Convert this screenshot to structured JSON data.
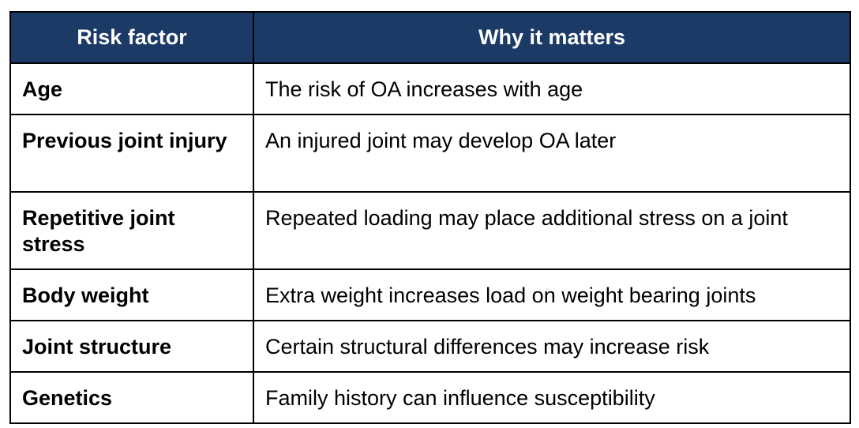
{
  "table": {
    "headers": {
      "factor": "Risk factor",
      "why": "Why it matters"
    },
    "rows": [
      {
        "factor": "Age",
        "why": "The risk of OA increases with age"
      },
      {
        "factor": "Previous joint injury",
        "why": "An injured joint may develop OA later"
      },
      {
        "factor": "Repetitive joint stress",
        "why": "Repeated loading may place additional stress on a joint"
      },
      {
        "factor": "Body weight",
        "why": "Extra weight increases load on weight bearing joints"
      },
      {
        "factor": "Joint structure",
        "why": "Certain structural differences may increase risk"
      },
      {
        "factor": "Genetics",
        "why": "Family history can influence susceptibility"
      }
    ],
    "colors": {
      "header_background": "#1b3a66",
      "header_text": "#ffffff",
      "border": "#000000"
    }
  }
}
